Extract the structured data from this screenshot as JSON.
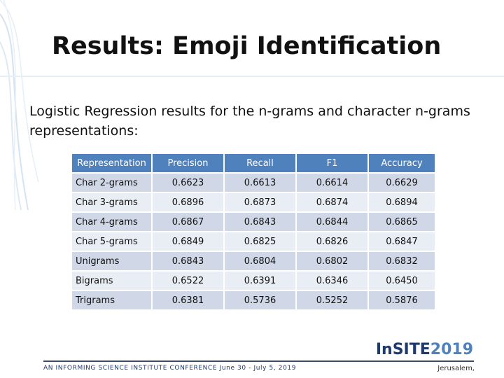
{
  "slide": {
    "title": "Results: Emoji Identification",
    "subtitle": "Logistic Regression results for the n-grams and character n-grams representations:"
  },
  "table": {
    "headers": [
      "Representation",
      "Precision",
      "Recall",
      "F1",
      "Accuracy"
    ],
    "rows": [
      [
        "Char 2-grams",
        "0.6623",
        "0.6613",
        "0.6614",
        "0.6629"
      ],
      [
        "Char 3-grams",
        "0.6896",
        "0.6873",
        "0.6874",
        "0.6894"
      ],
      [
        "Char 4-grams",
        "0.6867",
        "0.6843",
        "0.6844",
        "0.6865"
      ],
      [
        "Char 5-grams",
        "0.6849",
        "0.6825",
        "0.6826",
        "0.6847"
      ],
      [
        "Unigrams",
        "0.6843",
        "0.6804",
        "0.6802",
        "0.6832"
      ],
      [
        "Bigrams",
        "0.6522",
        "0.6391",
        "0.6346",
        "0.6450"
      ],
      [
        "Trigrams",
        "0.6381",
        "0.5736",
        "0.5252",
        "0.5876"
      ]
    ]
  },
  "footer": {
    "conference": "AN INFORMING SCIENCE INSTITUTE CONFERENCE June 30 - July 5, 2019",
    "logo_in": "In",
    "logo_site": "SITE",
    "logo_year": "2019",
    "location": "Jerusalem,"
  },
  "colors": {
    "header_bg": "#4f81bd",
    "row_odd_bg": "#d0d8e8",
    "row_even_bg": "#e9edf4",
    "footer_text": "#1f3a6e"
  }
}
